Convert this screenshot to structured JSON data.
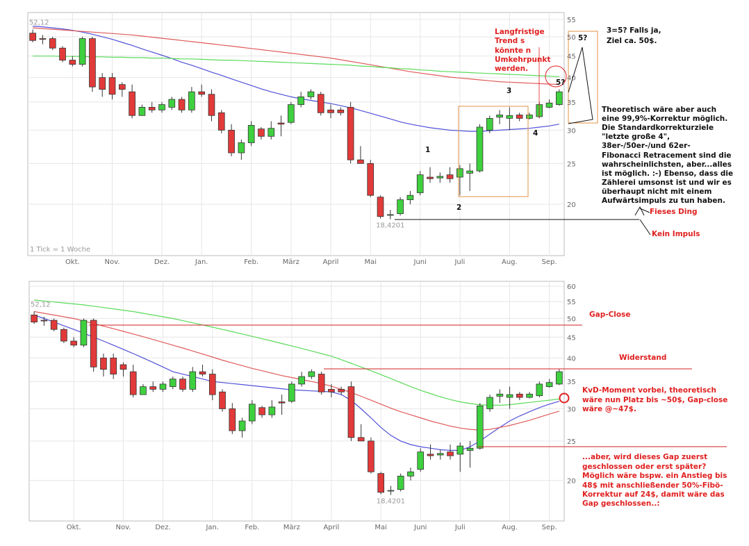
{
  "chart_data": [
    {
      "type": "candlestick",
      "yscale": "log",
      "grid": true,
      "categories": [
        null,
        null,
        null,
        null,
        "Okt.",
        null,
        null,
        null,
        "Nov.",
        null,
        null,
        null,
        null,
        "Dez.",
        null,
        null,
        null,
        "Jan.",
        null,
        null,
        null,
        null,
        "Feb.",
        null,
        null,
        null,
        "März",
        null,
        null,
        null,
        "April",
        null,
        null,
        null,
        "Mai",
        null,
        null,
        null,
        null,
        "Juni",
        null,
        null,
        null,
        "Juli",
        null,
        null,
        null,
        null,
        "Aug.",
        null,
        null,
        null,
        "Sep.",
        null
      ],
      "open": [
        51,
        49.5,
        49.5,
        47,
        44,
        43,
        49.5,
        40,
        40,
        38.5,
        37,
        32.5,
        34,
        33.5,
        34,
        35.5,
        33.5,
        37,
        36.5,
        33,
        30,
        26.5,
        28,
        30.2,
        29,
        31.2,
        31.3,
        34.5,
        36,
        36.5,
        33.5,
        33.5,
        34,
        25.5,
        25,
        20.8,
        18.9,
        19,
        20.5,
        21.3,
        23.2,
        23.1,
        23.5,
        23.2,
        23.7,
        24,
        30,
        32.2,
        32,
        32.6,
        32,
        32.3,
        34,
        34.5
      ],
      "high": [
        52,
        50.5,
        50,
        47.5,
        45,
        50,
        50,
        41,
        41,
        39,
        38.5,
        34.5,
        35,
        35,
        36,
        36,
        38,
        38.5,
        37.5,
        33.5,
        31,
        28.5,
        31.5,
        30.5,
        31.5,
        32.5,
        35,
        37,
        37.5,
        37,
        34.5,
        34,
        35,
        27.5,
        25.5,
        21,
        19.4,
        20.8,
        21.5,
        24,
        24.5,
        23.8,
        24.5,
        24.8,
        25,
        31,
        32.5,
        33.5,
        34,
        33,
        33,
        35,
        35.5,
        37.5
      ],
      "low": [
        48.5,
        48,
        46.5,
        43.5,
        42.5,
        42.5,
        37,
        36,
        35.5,
        36,
        32,
        32.5,
        33,
        33,
        33.5,
        33,
        33,
        36,
        31.5,
        29.5,
        26,
        25.5,
        27.5,
        28.5,
        28.5,
        29,
        31,
        34,
        35.5,
        32.5,
        32,
        32.5,
        25,
        25,
        20.8,
        18.5,
        18.4201,
        18.8,
        20,
        21,
        22.5,
        22.5,
        22.5,
        21,
        21.5,
        23.8,
        29.5,
        31,
        30,
        31.5,
        31.8,
        32,
        33.8,
        34.3
      ],
      "close": [
        49,
        49.3,
        47,
        44,
        43,
        49.5,
        38,
        37.5,
        36.5,
        37.5,
        32.5,
        34,
        33.5,
        34.5,
        35.5,
        33.5,
        37,
        36.5,
        32.5,
        30,
        26.5,
        28,
        30.8,
        29,
        30.3,
        31,
        34.5,
        36,
        37,
        33,
        33,
        33,
        25.5,
        25,
        21,
        18.7,
        18.9,
        20.5,
        21,
        23.5,
        23,
        23.3,
        23,
        24.3,
        24,
        30.5,
        32,
        32.6,
        32.5,
        32,
        32.6,
        34.5,
        34.8,
        37
      ],
      "up_color": "#3fd03f",
      "down_color": "#e23a3a",
      "lines": [
        {
          "color": "#5050d8",
          "values": [
            53,
            52.8,
            52.5,
            52.2,
            51.8,
            51.3,
            50.7,
            50,
            49.3,
            48.5,
            47.7,
            46.8,
            46,
            45.2,
            44.4,
            43.5,
            42.8,
            42,
            41.2,
            40.5,
            39.7,
            39,
            38.3,
            37.6,
            37,
            36.5,
            36,
            35.6,
            35.3,
            35,
            34.7,
            34.3,
            33.9,
            33.4,
            32.9,
            32.4,
            31.9,
            31.4,
            31,
            30.7,
            30.4,
            30.2,
            30,
            29.9,
            29.8,
            29.8,
            29.9,
            30,
            30.1,
            30.2,
            30.3,
            30.5,
            30.7,
            31
          ]
        },
        {
          "color": "#e05a5a",
          "values": [
            52.5,
            52.3,
            52.1,
            51.9,
            51.7,
            51.5,
            51.3,
            51.1,
            50.9,
            50.7,
            50.5,
            50.2,
            49.9,
            49.6,
            49.3,
            49,
            48.7,
            48.4,
            48.1,
            47.8,
            47.5,
            47.2,
            46.9,
            46.6,
            46.3,
            46,
            45.7,
            45.4,
            45.1,
            44.8,
            44.5,
            44.1,
            43.7,
            43.3,
            42.9,
            42.5,
            42.1,
            41.7,
            41.3,
            41,
            40.7,
            40.4,
            40.1,
            39.9,
            39.7,
            39.5,
            39.3,
            39.1,
            39,
            38.9,
            38.8,
            38.7,
            38.6,
            38.5
          ]
        },
        {
          "color": "#5ada5a",
          "values": [
            45,
            45,
            45,
            44.9,
            44.9,
            44.9,
            44.8,
            44.8,
            44.7,
            44.7,
            44.6,
            44.6,
            44.5,
            44.5,
            44.4,
            44.3,
            44.3,
            44.2,
            44.1,
            44,
            44,
            43.9,
            43.8,
            43.7,
            43.6,
            43.5,
            43.4,
            43.3,
            43.2,
            43.1,
            43,
            42.9,
            42.8,
            42.6,
            42.5,
            42.3,
            42.2,
            42,
            41.9,
            41.7,
            41.6,
            41.4,
            41.3,
            41.2,
            41.1,
            41,
            40.9,
            40.8,
            40.7,
            40.6,
            40.5,
            40.4,
            40.3,
            40.2
          ]
        }
      ],
      "ylim": [
        15.1,
        57.1
      ],
      "yticks": [
        20,
        25,
        30,
        35,
        40,
        45,
        50,
        55
      ],
      "start_label": "52,12",
      "low_label": "18,4201",
      "note": "1 Tick = 1 Woche",
      "annotations": [
        "Langfristige",
        "Trend s",
        "könnte n",
        "Umkehrpunkt",
        "werden.",
        "3=5? Falls ja,",
        "Ziel ca. 50$.",
        "5?",
        "5?",
        "3",
        "1",
        "2",
        "4",
        "Theoretisch wäre aber auch",
        "eine 99,9%-Korrektur möglich.",
        "Die Standardkorrekturziele",
        "\"letzte große 4\",",
        "38er-/50er-/und 62er-",
        "Fibonacci Retracement sind die",
        "wahrscheinlichsten, aber...alles",
        "ist möglich. :-) Ebenso, dass die",
        "Zählerei umsonst ist und wir es",
        "überhaupt nicht mit einem",
        "Aufwärtsimpuls zu tun haben.",
        "Fieses Ding",
        "Kein Impuls"
      ]
    },
    {
      "type": "candlestick",
      "yscale": "log",
      "grid": true,
      "categories": [
        null,
        null,
        null,
        null,
        "Okt.",
        null,
        null,
        null,
        null,
        "Nov.",
        null,
        null,
        null,
        "Dez.",
        null,
        null,
        null,
        null,
        "Jan.",
        null,
        null,
        null,
        "Feb.",
        null,
        null,
        null,
        "März",
        null,
        null,
        null,
        "April",
        null,
        null,
        null,
        null,
        "Mai",
        null,
        null,
        null,
        "Juni",
        null,
        null,
        null,
        "Juli",
        null,
        null,
        null,
        null,
        "Aug.",
        null,
        null,
        null,
        "Sep.",
        null
      ],
      "open": [
        51,
        49.5,
        49.5,
        47,
        44,
        43,
        49.5,
        40,
        40,
        38.5,
        37,
        32.5,
        34,
        33.5,
        34,
        35.5,
        33.5,
        37,
        36.5,
        33,
        30,
        26.5,
        28,
        30.2,
        29,
        31.2,
        31.3,
        34.5,
        36,
        36.5,
        33.5,
        33.5,
        34,
        25.5,
        25,
        20.8,
        18.9,
        19,
        20.5,
        21.3,
        23.2,
        23.1,
        23.5,
        23.2,
        23.7,
        24,
        30,
        32.2,
        32,
        32.6,
        32,
        32.3,
        34,
        34.5
      ],
      "high": [
        52,
        50.5,
        50,
        47.5,
        45,
        50,
        50,
        41,
        41,
        39,
        38.5,
        34.5,
        35,
        35,
        36,
        36,
        38,
        38.5,
        37.5,
        33.5,
        31,
        28.5,
        31.5,
        30.5,
        31.5,
        32.5,
        35,
        37,
        37.5,
        37,
        34.5,
        34,
        35,
        27.5,
        25.5,
        21,
        19.4,
        20.8,
        21.5,
        24,
        24.5,
        23.8,
        24.5,
        24.8,
        25,
        31,
        32.5,
        33.5,
        34,
        33,
        33,
        35,
        35.5,
        37.5
      ],
      "low": [
        48.5,
        48,
        46.5,
        43.5,
        42.5,
        42.5,
        37,
        36,
        35.5,
        36,
        32,
        32.5,
        33,
        33,
        33.5,
        33,
        33,
        36,
        31.5,
        29.5,
        26,
        25.5,
        27.5,
        28.5,
        28.5,
        29,
        31,
        34,
        35.5,
        32.5,
        32,
        32.5,
        25,
        25,
        20.8,
        18.5,
        18.4201,
        18.8,
        20,
        21,
        22.5,
        22.5,
        22.5,
        21,
        21.5,
        23.8,
        29.5,
        31,
        30,
        31.5,
        31.8,
        32,
        33.8,
        34.3
      ],
      "close": [
        49,
        49.3,
        47,
        44,
        43,
        49.5,
        38,
        37.5,
        36.5,
        37.5,
        32.5,
        34,
        33.5,
        34.5,
        35.5,
        33.5,
        37,
        36.5,
        32.5,
        30,
        26.5,
        28,
        30.8,
        29,
        30.3,
        31,
        34.5,
        36,
        37,
        33,
        33,
        33,
        25.5,
        25,
        21,
        18.7,
        18.9,
        20.5,
        21,
        23.5,
        23,
        23.3,
        23,
        24.3,
        24,
        30.5,
        32,
        32.6,
        32.5,
        32,
        32.6,
        34.5,
        34.8,
        37
      ],
      "up_color": "#3fd03f",
      "down_color": "#e23a3a",
      "lines": [
        {
          "color": "#5050d8",
          "values": [
            51,
            50,
            49,
            48,
            47,
            46,
            45,
            44,
            43,
            42,
            41,
            40,
            39,
            38,
            37,
            36.5,
            36,
            35.5,
            35,
            34.8,
            34.6,
            34.4,
            34.2,
            34,
            33.8,
            33.6,
            33.4,
            33.3,
            33.2,
            33.1,
            33,
            32.5,
            31.5,
            30,
            28.5,
            27,
            25.8,
            25,
            24.5,
            24.2,
            24,
            23.8,
            23.7,
            23.7,
            24.2,
            25,
            26,
            27,
            28,
            28.8,
            29.5,
            30.2,
            30.8,
            31.3
          ]
        },
        {
          "color": "#e05a5a",
          "values": [
            52,
            51.5,
            51,
            50.5,
            50,
            49.3,
            48.6,
            47.9,
            47.2,
            46.5,
            45.8,
            45.1,
            44.4,
            43.7,
            43,
            42.3,
            41.6,
            40.9,
            40.2,
            39.5,
            38.9,
            38.3,
            37.7,
            37.2,
            36.7,
            36.2,
            35.8,
            35.4,
            35,
            34.6,
            34.1,
            33.5,
            32.9,
            32.2,
            31.5,
            30.8,
            30.1,
            29.5,
            29,
            28.5,
            28,
            27.6,
            27.2,
            26.9,
            26.7,
            26.6,
            26.7,
            27,
            27.3,
            27.7,
            28.1,
            28.6,
            29.1,
            29.6
          ]
        },
        {
          "color": "#5ada5a",
          "values": [
            55.5,
            55.2,
            54.9,
            54.6,
            54.3,
            54,
            53.6,
            53.2,
            52.8,
            52.4,
            52,
            51.5,
            51,
            50.5,
            50,
            49.4,
            48.8,
            48.2,
            47.6,
            47,
            46.4,
            45.8,
            45.2,
            44.6,
            44,
            43.4,
            42.8,
            42.2,
            41.6,
            41,
            40.4,
            39.6,
            38.8,
            38,
            37.2,
            36.4,
            35.6,
            34.8,
            34,
            33.3,
            32.7,
            32.1,
            31.6,
            31.2,
            30.9,
            30.7,
            30.6,
            30.6,
            30.7,
            30.9,
            31.1,
            31.3,
            31.5,
            31.7
          ]
        }
      ],
      "ylim": [
        15.9,
        61.7
      ],
      "yticks": [
        20,
        25,
        30,
        35,
        40,
        45,
        50,
        55,
        60
      ],
      "start_label": "52,12",
      "low_label": "18,4201",
      "annotations": [
        "Gap-Close",
        "Widerstand",
        "KvD-Moment vorbei, theoretisch",
        "wäre nun Platz bis ~50$, Gap-close",
        "wäre @~47$.",
        "...aber, wird dieses Gap zuerst",
        "geschlossen oder erst später?",
        "Möglich wäre bspw. ein Anstieg bis",
        "48$ mit anschließender 50%-Fibö-",
        "Korrektur auf 24$, damit wäre das",
        "Gap geschlossen..:"
      ]
    }
  ]
}
